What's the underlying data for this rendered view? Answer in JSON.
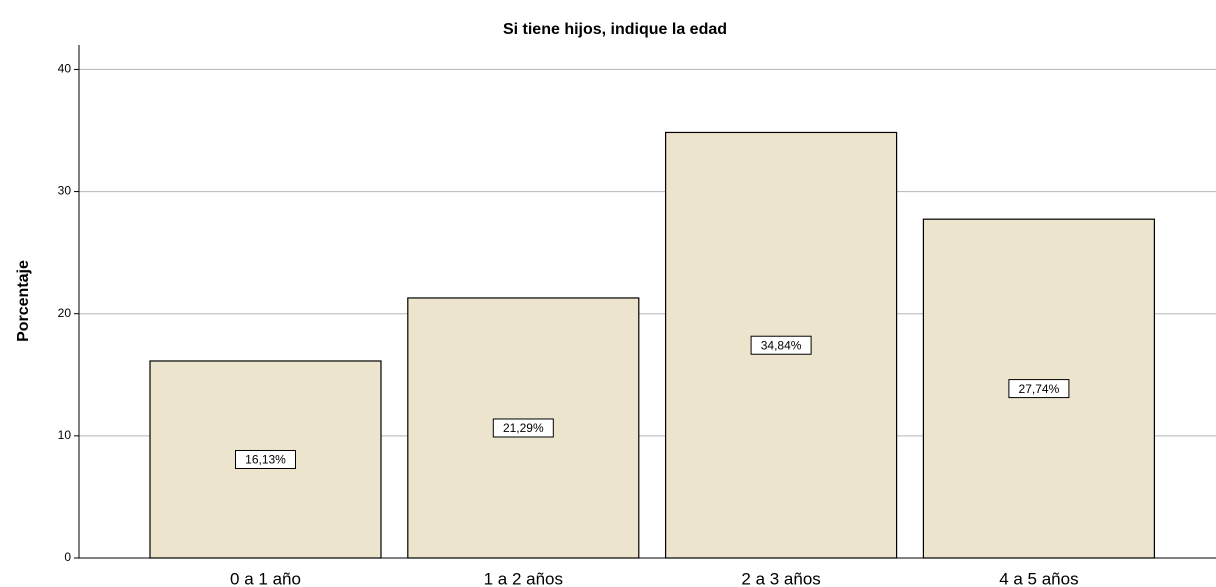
{
  "chart_data": {
    "type": "bar",
    "title": "Si tiene hijos, indique la edad",
    "y_label": "Porcentaje",
    "categories": [
      "0 a 1 año",
      "1 a 2 años",
      "2 a 3 años",
      "4 a 5 años"
    ],
    "values": [
      16.13,
      21.29,
      34.84,
      27.74
    ],
    "value_labels": [
      "16,13%",
      "21,29%",
      "34,84%",
      "27,74%"
    ],
    "color": "#ece4cc",
    "ylim": [
      0,
      42
    ],
    "yticks": [
      0,
      10,
      20,
      30,
      40
    ],
    "grid": true
  }
}
